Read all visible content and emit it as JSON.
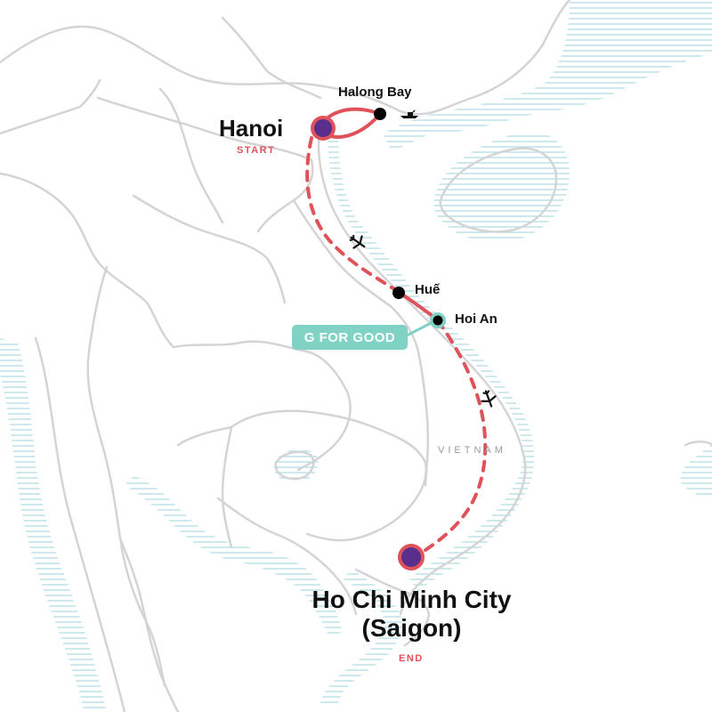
{
  "map": {
    "country_label": "VIETNAM",
    "colors": {
      "background": "#ffffff",
      "land_border": "#d4d4d4",
      "coast_hatch": "#a9dbe0",
      "route": "#e0525a",
      "city_marker_fill": "#5a2e8c",
      "city_marker_ring": "#e0525a",
      "stop_dot": "#000000",
      "gfg_teal": "#7fd2c4",
      "text": "#111111",
      "tag_text": "#e0525a",
      "country_text": "#9a9a9a"
    }
  },
  "places": {
    "hanoi": {
      "name": "Hanoi",
      "tag": "START",
      "marker": "start-end-circle"
    },
    "halong_bay": {
      "name": "Halong Bay",
      "marker": "dot",
      "icon": "boat-icon"
    },
    "hue": {
      "name": "Huế",
      "marker": "dot"
    },
    "hoi_an": {
      "name": "Hoi An",
      "marker": "teal-ring-dot"
    },
    "hcmc": {
      "name_line1": "Ho Chi Minh City",
      "name_line2": "(Saigon)",
      "tag": "END",
      "marker": "start-end-circle"
    }
  },
  "badge": {
    "label": "G FOR GOOD"
  },
  "route": {
    "legs": [
      {
        "from": "Hanoi",
        "to": "Halong Bay",
        "mode": "road",
        "style": "solid"
      },
      {
        "from": "Halong Bay",
        "to": "Hanoi",
        "mode": "road",
        "style": "solid"
      },
      {
        "from": "Hanoi",
        "to": "Huế",
        "mode": "flight",
        "style": "dashed",
        "icon": "plane-icon"
      },
      {
        "from": "Huế",
        "to": "Hoi An",
        "mode": "road",
        "style": "solid"
      },
      {
        "from": "Hoi An",
        "to": "Ho Chi Minh City",
        "mode": "flight",
        "style": "dashed",
        "icon": "plane-icon"
      }
    ]
  }
}
